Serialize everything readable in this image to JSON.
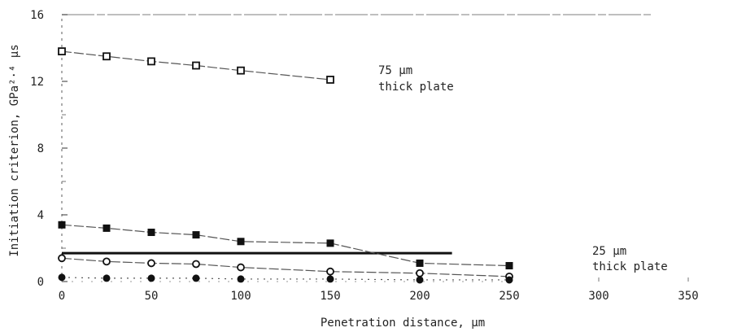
{
  "chart_data": {
    "type": "line",
    "xlabel": "Penetration distance, µm",
    "ylabel": "Initiation criterion, GPa²·⁴ µs",
    "xlim": [
      0,
      350
    ],
    "ylim": [
      0,
      16
    ],
    "x_ticks": [
      "0",
      "50",
      "100",
      "150",
      "200",
      "250",
      "300",
      "350"
    ],
    "y_ticks": [
      "0",
      "4",
      "8",
      "12",
      "16"
    ],
    "grid": false,
    "series": [
      {
        "marker": "open-square",
        "x": [
          0,
          25,
          50,
          75,
          100,
          150
        ],
        "y": [
          13.8,
          13.5,
          13.2,
          12.95,
          12.65,
          12.1
        ]
      },
      {
        "marker": "filled-square",
        "x": [
          0,
          25,
          50,
          75,
          100,
          150,
          200,
          250
        ],
        "y": [
          3.4,
          3.2,
          2.95,
          2.8,
          2.4,
          2.3,
          1.1,
          0.95
        ]
      },
      {
        "marker": "open-circle",
        "x": [
          0,
          25,
          50,
          75,
          100,
          150,
          200,
          250
        ],
        "y": [
          1.4,
          1.2,
          1.1,
          1.05,
          0.85,
          0.6,
          0.5,
          0.3
        ]
      },
      {
        "marker": "filled-circle",
        "x": [
          0,
          25,
          50,
          75,
          100,
          150,
          200,
          250
        ],
        "y": [
          0.25,
          0.2,
          0.2,
          0.2,
          0.15,
          0.15,
          0.1,
          0.1
        ]
      }
    ],
    "threshold": {
      "y": 1.7,
      "x_range": [
        0,
        218
      ]
    },
    "annotations": [
      {
        "lines": [
          "75 µm",
          "thick plate"
        ]
      },
      {
        "lines": [
          "25 µm",
          "thick plate"
        ]
      }
    ]
  }
}
